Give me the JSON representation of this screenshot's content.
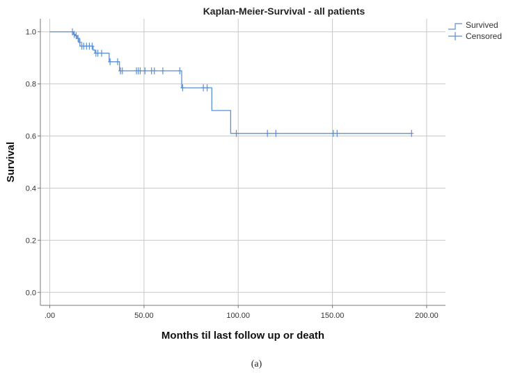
{
  "chart_data": {
    "type": "line",
    "title": "Kaplan-Meier-Survival - all patients",
    "xlabel": "Months til last follow up or death",
    "ylabel": "Survival",
    "xlim": [
      -5,
      210
    ],
    "ylim": [
      -0.05,
      1.05
    ],
    "x_ticks": [
      0,
      50,
      100,
      150,
      200
    ],
    "x_tick_labels": [
      ".00",
      "50.00",
      "100.00",
      "150.00",
      "200.00"
    ],
    "y_ticks": [
      0,
      0.2,
      0.4,
      0.6,
      0.8,
      1.0
    ],
    "y_tick_labels": [
      "0.0",
      "0.2",
      "0.4",
      "0.6",
      "0.8",
      "1.0"
    ],
    "grid": true,
    "legend_position": "top-right",
    "series": [
      {
        "name": "Survived",
        "kind": "step",
        "points": [
          [
            0,
            1.0
          ],
          [
            12.5,
            0.99
          ],
          [
            13.5,
            0.985
          ],
          [
            14.5,
            0.975
          ],
          [
            15.5,
            0.96
          ],
          [
            16,
            0.945
          ],
          [
            23,
            0.93
          ],
          [
            24,
            0.918
          ],
          [
            31.5,
            0.885
          ],
          [
            37,
            0.85
          ],
          [
            70,
            0.785
          ],
          [
            86,
            0.698
          ],
          [
            96,
            0.61
          ],
          [
            192,
            0.61
          ]
        ]
      },
      {
        "name": "Censored",
        "kind": "markers",
        "points": [
          [
            12,
            1.0
          ],
          [
            13,
            0.99
          ],
          [
            14,
            0.985
          ],
          [
            15,
            0.975
          ],
          [
            16,
            0.96
          ],
          [
            17,
            0.945
          ],
          [
            18,
            0.945
          ],
          [
            19.5,
            0.945
          ],
          [
            21,
            0.945
          ],
          [
            22.5,
            0.945
          ],
          [
            24.5,
            0.918
          ],
          [
            25.5,
            0.918
          ],
          [
            27.5,
            0.918
          ],
          [
            32,
            0.885
          ],
          [
            36,
            0.885
          ],
          [
            37.5,
            0.85
          ],
          [
            38.5,
            0.85
          ],
          [
            46,
            0.85
          ],
          [
            47,
            0.85
          ],
          [
            48,
            0.85
          ],
          [
            50.5,
            0.85
          ],
          [
            54,
            0.85
          ],
          [
            55.5,
            0.85
          ],
          [
            60,
            0.85
          ],
          [
            69,
            0.85
          ],
          [
            70.5,
            0.785
          ],
          [
            81.5,
            0.785
          ],
          [
            83.5,
            0.785
          ],
          [
            99,
            0.61
          ],
          [
            115.5,
            0.61
          ],
          [
            120,
            0.61
          ],
          [
            150.5,
            0.61
          ],
          [
            152.5,
            0.61
          ],
          [
            192,
            0.61
          ]
        ]
      }
    ],
    "colors": {
      "line": "#5b8fd6",
      "grid": "#c8c8c8",
      "axis": "#777777"
    }
  },
  "caption": "(a)"
}
